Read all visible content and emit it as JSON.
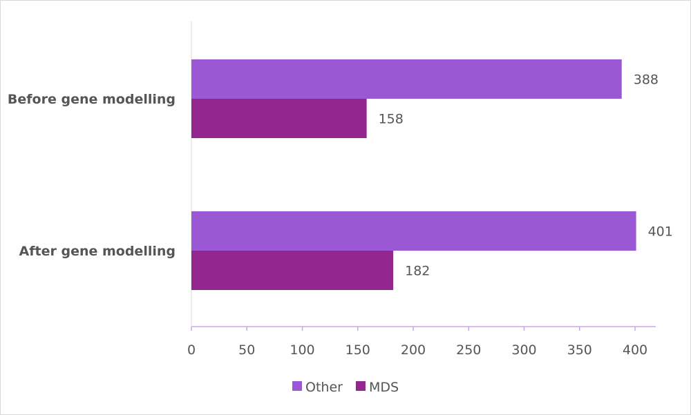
{
  "chart_data": {
    "type": "bar",
    "orientation": "horizontal",
    "title": "",
    "categories": [
      "Before gene modelling",
      "After gene modelling"
    ],
    "series": [
      {
        "name": "Other",
        "values": [
          388,
          401
        ],
        "color": "#9b58d4"
      },
      {
        "name": "MDS",
        "values": [
          158,
          182
        ],
        "color": "#93268f"
      }
    ],
    "xlim": [
      0,
      420
    ],
    "xticks": [
      "0",
      "50",
      "100",
      "150",
      "200",
      "250",
      "300",
      "350",
      "400"
    ],
    "xtick_values": [
      0,
      50,
      100,
      150,
      200,
      250,
      300,
      350,
      400
    ],
    "grid": false,
    "legend": "bottom",
    "axis_color": "#c9a6ea"
  }
}
